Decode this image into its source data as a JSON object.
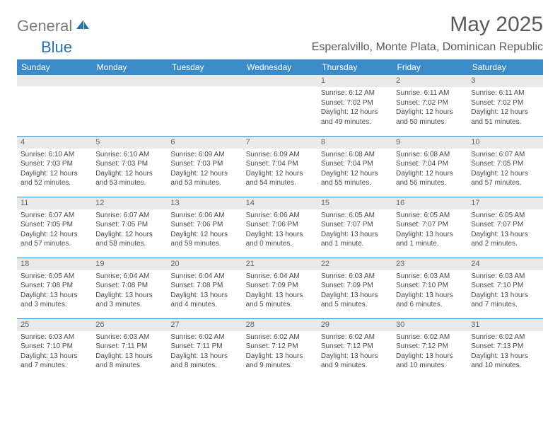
{
  "brand": {
    "general": "General",
    "blue": "Blue"
  },
  "title": "May 2025",
  "location": "Esperalvillo, Monte Plata, Dominican Republic",
  "colors": {
    "header_bg": "#3b8bc9",
    "header_fg": "#ffffff",
    "daynum_bg": "#e9e9e9",
    "text": "#4a4a4a",
    "title": "#5a5a5a",
    "logo_gray": "#7a7a7a",
    "logo_blue": "#2a6fb0"
  },
  "weekdays": [
    "Sunday",
    "Monday",
    "Tuesday",
    "Wednesday",
    "Thursday",
    "Friday",
    "Saturday"
  ],
  "weeks": [
    [
      {
        "day": "",
        "sunrise": "",
        "sunset": "",
        "daylight": ""
      },
      {
        "day": "",
        "sunrise": "",
        "sunset": "",
        "daylight": ""
      },
      {
        "day": "",
        "sunrise": "",
        "sunset": "",
        "daylight": ""
      },
      {
        "day": "",
        "sunrise": "",
        "sunset": "",
        "daylight": ""
      },
      {
        "day": "1",
        "sunrise": "Sunrise: 6:12 AM",
        "sunset": "Sunset: 7:02 PM",
        "daylight": "Daylight: 12 hours and 49 minutes."
      },
      {
        "day": "2",
        "sunrise": "Sunrise: 6:11 AM",
        "sunset": "Sunset: 7:02 PM",
        "daylight": "Daylight: 12 hours and 50 minutes."
      },
      {
        "day": "3",
        "sunrise": "Sunrise: 6:11 AM",
        "sunset": "Sunset: 7:02 PM",
        "daylight": "Daylight: 12 hours and 51 minutes."
      }
    ],
    [
      {
        "day": "4",
        "sunrise": "Sunrise: 6:10 AM",
        "sunset": "Sunset: 7:03 PM",
        "daylight": "Daylight: 12 hours and 52 minutes."
      },
      {
        "day": "5",
        "sunrise": "Sunrise: 6:10 AM",
        "sunset": "Sunset: 7:03 PM",
        "daylight": "Daylight: 12 hours and 53 minutes."
      },
      {
        "day": "6",
        "sunrise": "Sunrise: 6:09 AM",
        "sunset": "Sunset: 7:03 PM",
        "daylight": "Daylight: 12 hours and 53 minutes."
      },
      {
        "day": "7",
        "sunrise": "Sunrise: 6:09 AM",
        "sunset": "Sunset: 7:04 PM",
        "daylight": "Daylight: 12 hours and 54 minutes."
      },
      {
        "day": "8",
        "sunrise": "Sunrise: 6:08 AM",
        "sunset": "Sunset: 7:04 PM",
        "daylight": "Daylight: 12 hours and 55 minutes."
      },
      {
        "day": "9",
        "sunrise": "Sunrise: 6:08 AM",
        "sunset": "Sunset: 7:04 PM",
        "daylight": "Daylight: 12 hours and 56 minutes."
      },
      {
        "day": "10",
        "sunrise": "Sunrise: 6:07 AM",
        "sunset": "Sunset: 7:05 PM",
        "daylight": "Daylight: 12 hours and 57 minutes."
      }
    ],
    [
      {
        "day": "11",
        "sunrise": "Sunrise: 6:07 AM",
        "sunset": "Sunset: 7:05 PM",
        "daylight": "Daylight: 12 hours and 57 minutes."
      },
      {
        "day": "12",
        "sunrise": "Sunrise: 6:07 AM",
        "sunset": "Sunset: 7:05 PM",
        "daylight": "Daylight: 12 hours and 58 minutes."
      },
      {
        "day": "13",
        "sunrise": "Sunrise: 6:06 AM",
        "sunset": "Sunset: 7:06 PM",
        "daylight": "Daylight: 12 hours and 59 minutes."
      },
      {
        "day": "14",
        "sunrise": "Sunrise: 6:06 AM",
        "sunset": "Sunset: 7:06 PM",
        "daylight": "Daylight: 13 hours and 0 minutes."
      },
      {
        "day": "15",
        "sunrise": "Sunrise: 6:05 AM",
        "sunset": "Sunset: 7:07 PM",
        "daylight": "Daylight: 13 hours and 1 minute."
      },
      {
        "day": "16",
        "sunrise": "Sunrise: 6:05 AM",
        "sunset": "Sunset: 7:07 PM",
        "daylight": "Daylight: 13 hours and 1 minute."
      },
      {
        "day": "17",
        "sunrise": "Sunrise: 6:05 AM",
        "sunset": "Sunset: 7:07 PM",
        "daylight": "Daylight: 13 hours and 2 minutes."
      }
    ],
    [
      {
        "day": "18",
        "sunrise": "Sunrise: 6:05 AM",
        "sunset": "Sunset: 7:08 PM",
        "daylight": "Daylight: 13 hours and 3 minutes."
      },
      {
        "day": "19",
        "sunrise": "Sunrise: 6:04 AM",
        "sunset": "Sunset: 7:08 PM",
        "daylight": "Daylight: 13 hours and 3 minutes."
      },
      {
        "day": "20",
        "sunrise": "Sunrise: 6:04 AM",
        "sunset": "Sunset: 7:08 PM",
        "daylight": "Daylight: 13 hours and 4 minutes."
      },
      {
        "day": "21",
        "sunrise": "Sunrise: 6:04 AM",
        "sunset": "Sunset: 7:09 PM",
        "daylight": "Daylight: 13 hours and 5 minutes."
      },
      {
        "day": "22",
        "sunrise": "Sunrise: 6:03 AM",
        "sunset": "Sunset: 7:09 PM",
        "daylight": "Daylight: 13 hours and 5 minutes."
      },
      {
        "day": "23",
        "sunrise": "Sunrise: 6:03 AM",
        "sunset": "Sunset: 7:10 PM",
        "daylight": "Daylight: 13 hours and 6 minutes."
      },
      {
        "day": "24",
        "sunrise": "Sunrise: 6:03 AM",
        "sunset": "Sunset: 7:10 PM",
        "daylight": "Daylight: 13 hours and 7 minutes."
      }
    ],
    [
      {
        "day": "25",
        "sunrise": "Sunrise: 6:03 AM",
        "sunset": "Sunset: 7:10 PM",
        "daylight": "Daylight: 13 hours and 7 minutes."
      },
      {
        "day": "26",
        "sunrise": "Sunrise: 6:03 AM",
        "sunset": "Sunset: 7:11 PM",
        "daylight": "Daylight: 13 hours and 8 minutes."
      },
      {
        "day": "27",
        "sunrise": "Sunrise: 6:02 AM",
        "sunset": "Sunset: 7:11 PM",
        "daylight": "Daylight: 13 hours and 8 minutes."
      },
      {
        "day": "28",
        "sunrise": "Sunrise: 6:02 AM",
        "sunset": "Sunset: 7:12 PM",
        "daylight": "Daylight: 13 hours and 9 minutes."
      },
      {
        "day": "29",
        "sunrise": "Sunrise: 6:02 AM",
        "sunset": "Sunset: 7:12 PM",
        "daylight": "Daylight: 13 hours and 9 minutes."
      },
      {
        "day": "30",
        "sunrise": "Sunrise: 6:02 AM",
        "sunset": "Sunset: 7:12 PM",
        "daylight": "Daylight: 13 hours and 10 minutes."
      },
      {
        "day": "31",
        "sunrise": "Sunrise: 6:02 AM",
        "sunset": "Sunset: 7:13 PM",
        "daylight": "Daylight: 13 hours and 10 minutes."
      }
    ]
  ]
}
